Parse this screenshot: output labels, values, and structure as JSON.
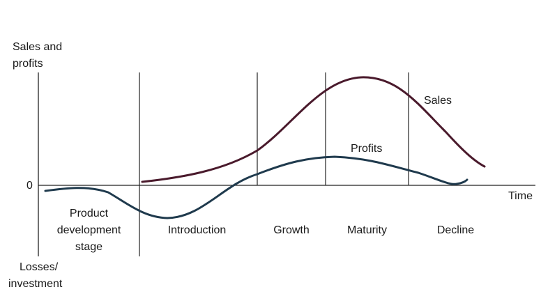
{
  "y_axis": {
    "top_label_line1": "Sales and",
    "top_label_line2": "profits",
    "zero_label": "0",
    "bottom_label_line1": "Losses/",
    "bottom_label_line2": "investment"
  },
  "x_axis": {
    "label": "Time"
  },
  "stages": {
    "product_development_line1": "Product",
    "product_development_line2": "development",
    "product_development_line3": "stage",
    "introduction": "Introduction",
    "growth": "Growth",
    "maturity": "Maturity",
    "decline": "Decline"
  },
  "curves": {
    "sales_label": "Sales",
    "profits_label": "Profits",
    "sales_color": "#4a1a2c",
    "profits_color": "#1f3a4d"
  },
  "colors": {
    "axis": "#222222",
    "text": "#1a1a1a"
  }
}
